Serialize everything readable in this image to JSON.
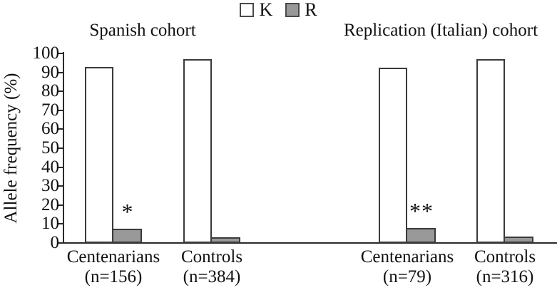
{
  "legend": {
    "items": [
      {
        "label": "K",
        "color": "#ffffff"
      },
      {
        "label": "R",
        "color": "#999999"
      }
    ]
  },
  "chart_data": {
    "type": "bar",
    "ylabel": "Allele frequency (%)",
    "ylim": [
      0,
      100
    ],
    "yticks": [
      0,
      10,
      20,
      30,
      40,
      50,
      60,
      70,
      80,
      90,
      100
    ],
    "grid": false,
    "legend_position": "top-center",
    "cohort_titles": [
      "Spanish cohort",
      "Replication (Italian) cohort"
    ],
    "series_names": [
      "K",
      "R"
    ],
    "colors": {
      "K": "#ffffff",
      "R": "#999999"
    },
    "groups": [
      {
        "cohort": "Spanish cohort",
        "label": "Centenarians",
        "sublabel": "(n=156)",
        "K": 93,
        "R": 7.5,
        "annotation": "*"
      },
      {
        "cohort": "Spanish cohort",
        "label": "Controls",
        "sublabel": "(n=384)",
        "K": 97,
        "R": 3,
        "annotation": ""
      },
      {
        "cohort": "Replication (Italian) cohort",
        "label": "Centenarians",
        "sublabel": "(n=79)",
        "K": 92.5,
        "R": 8,
        "annotation": "**"
      },
      {
        "cohort": "Replication (Italian) cohort",
        "label": "Controls",
        "sublabel": "(n=316)",
        "K": 97,
        "R": 3.5,
        "annotation": ""
      }
    ]
  }
}
